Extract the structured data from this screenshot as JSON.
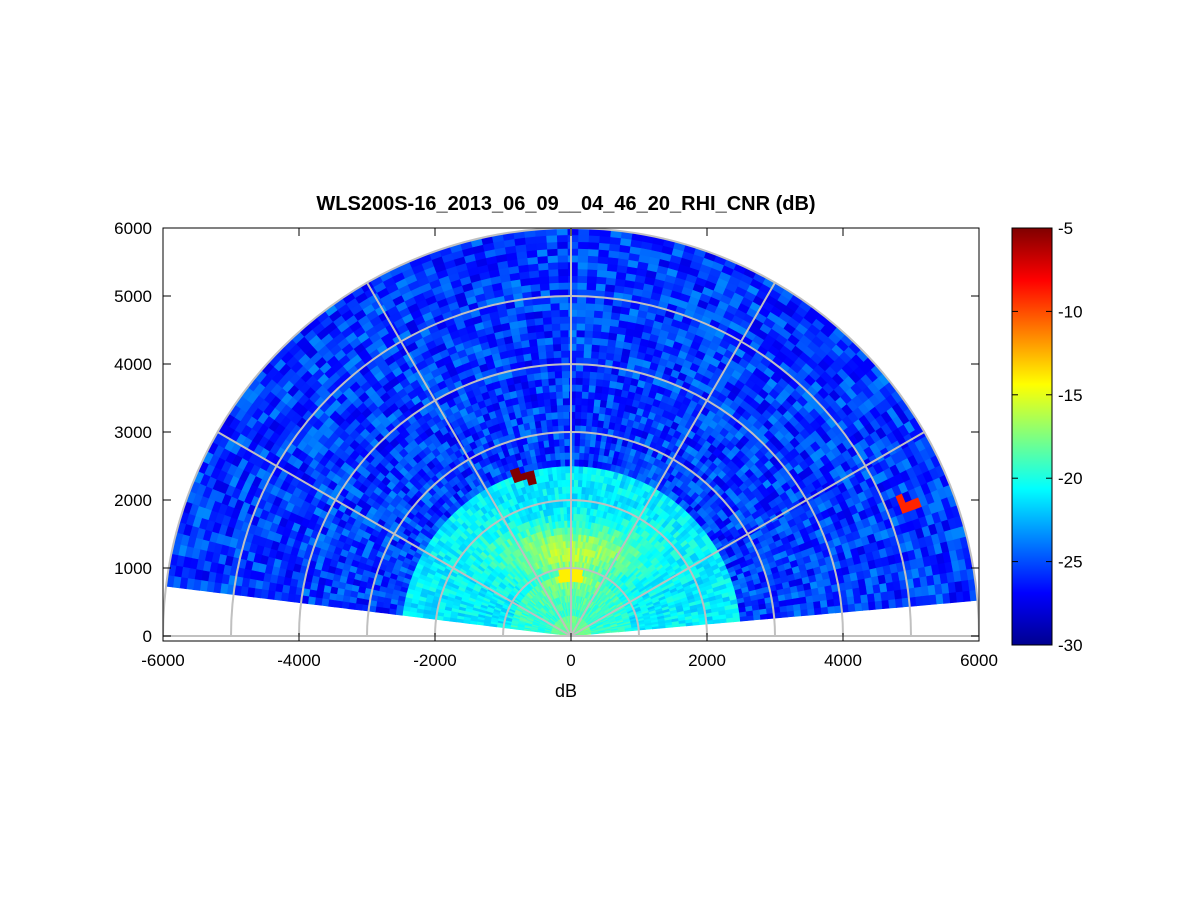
{
  "chart_data": {
    "type": "heatmap",
    "subtype": "polar-rhi",
    "title": "WLS200S-16_2013_06_09__04_46_20_RHI_CNR (dB)",
    "xlabel": "dB",
    "ylabel": "",
    "xlim": [
      -6000,
      6000
    ],
    "ylim": [
      0,
      6000
    ],
    "x_ticks": [
      -6000,
      -4000,
      -2000,
      0,
      2000,
      4000,
      6000
    ],
    "y_ticks": [
      0,
      1000,
      2000,
      3000,
      4000,
      5000,
      6000
    ],
    "grid_rings": [
      1000,
      2000,
      3000,
      4000,
      5000,
      6000
    ],
    "grid_spokes_deg": [
      0,
      30,
      60,
      90,
      120,
      150,
      180
    ],
    "colorbar": {
      "colormap": "jet",
      "clim": [
        -30,
        -5
      ],
      "ticks": [
        -5,
        -10,
        -15,
        -20,
        -25,
        -30
      ]
    },
    "data_extent": {
      "max_range": 6000,
      "elevation_min_deg": 5,
      "elevation_max_deg": 173
    },
    "features": [
      {
        "description": "maximum CNR layer",
        "x_range": [
          -600,
          700
        ],
        "y": 1300,
        "value": -11
      },
      {
        "description": "strong near-range return",
        "x": 0,
        "y": 900,
        "value": -14
      },
      {
        "description": "isolated hot pixels",
        "x": -700,
        "y": 2350,
        "value": -5
      },
      {
        "description": "isolated hot pixels",
        "x": 4950,
        "y": 1950,
        "value": -9
      }
    ]
  }
}
